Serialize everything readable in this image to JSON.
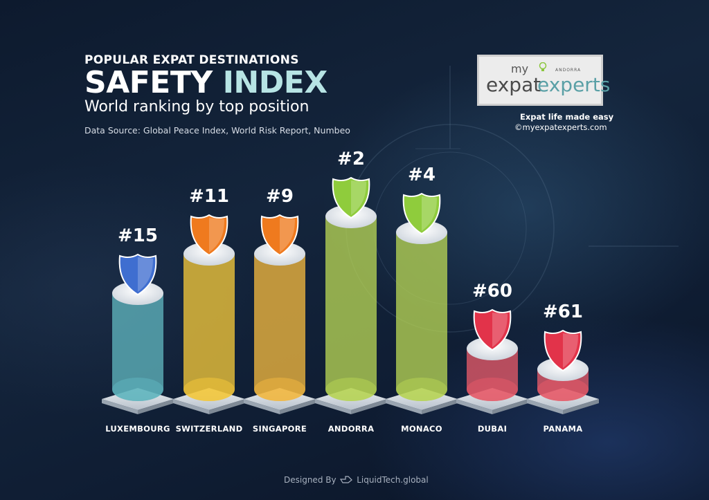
{
  "header": {
    "pre_title": "POPULAR EXPAT DESTINATIONS",
    "title_part1": "SAFETY ",
    "title_part2": "INDEX",
    "subtitle": "World ranking by top position",
    "source": "Data Source: Global Peace Index, World Risk Report, Numbeo"
  },
  "logo": {
    "my": "my",
    "andorra": "ANDORRA",
    "expat": "expat",
    "experts": "experts",
    "tagline": "Expat life made easy",
    "website": "©myexpatexperts.com"
  },
  "footer": {
    "designed_by": "Designed By",
    "brand": "LiquidTech.global"
  },
  "chart_data": {
    "type": "bar",
    "title": "SAFETY INDEX",
    "categories": [
      "LUXEMBOURG",
      "SWITZERLAND",
      "SINGAPORE",
      "ANDORRA",
      "MONACO",
      "DUBAI",
      "PANAMA"
    ],
    "values": [
      15,
      11,
      9,
      2,
      4,
      60,
      61
    ],
    "value_labels": [
      "#15",
      "#11",
      "#9",
      "#2",
      "#4",
      "#60",
      "#61"
    ],
    "colors": [
      "#5fb4bd",
      "#f2c63a",
      "#f1b73f",
      "#b6d454",
      "#b6d454",
      "#e65a68",
      "#e65a68"
    ],
    "shield_colors": [
      "#3f6ed0",
      "#ef7a1e",
      "#ef7a1e",
      "#8fcc3c",
      "#8fcc3c",
      "#e2334a",
      "#e2334a"
    ],
    "grid": false,
    "legend": "none"
  }
}
